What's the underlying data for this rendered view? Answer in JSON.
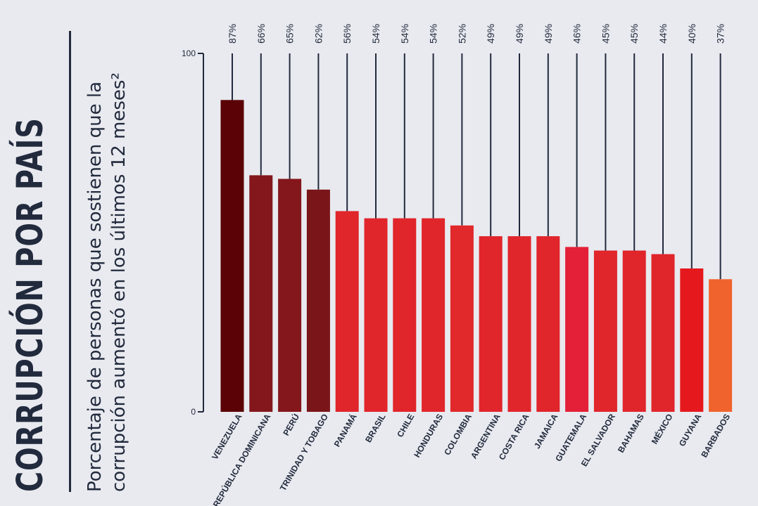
{
  "title": "CORRUPCIÓN POR PAÍS",
  "subtitle": "Porcentaje de personas que sostienen que la corrupción aumentó en los últimos 12 meses²",
  "chart_data": {
    "type": "bar",
    "categories": [
      "VENEZUELA",
      "REPÚBLICA DOMINICANA",
      "PERÚ",
      "TRINIDAD Y TOBAGO",
      "PANAMÁ",
      "BRASIL",
      "CHILE",
      "HONDURAS",
      "COLOMBIA",
      "ARGENTINA",
      "COSTA RICA",
      "JAMAICA",
      "GUATEMALA",
      "EL SALVADOR",
      "BAHAMAS",
      "MÉXICO",
      "GUYANA",
      "BARBADOS"
    ],
    "values": [
      87,
      66,
      65,
      62,
      56,
      54,
      54,
      54,
      52,
      49,
      49,
      49,
      46,
      45,
      45,
      44,
      40,
      37
    ],
    "value_labels": [
      "87%",
      "66%",
      "65%",
      "62%",
      "56%",
      "54%",
      "54%",
      "54%",
      "52%",
      "49%",
      "49%",
      "49%",
      "46%",
      "45%",
      "45%",
      "44%",
      "40%",
      "37%"
    ],
    "colors": [
      "#5a0206",
      "#83171c",
      "#83171c",
      "#7a1519",
      "#e0252b",
      "#e0252b",
      "#e0252b",
      "#e0252b",
      "#e1282a",
      "#e0252b",
      "#e0252b",
      "#e0252b",
      "#e41f38",
      "#e0252b",
      "#e0252b",
      "#e0252b",
      "#e5191d",
      "#f0632d"
    ],
    "ylim": [
      0,
      100
    ],
    "yticks": [
      "0",
      "100"
    ],
    "grid": false
  }
}
